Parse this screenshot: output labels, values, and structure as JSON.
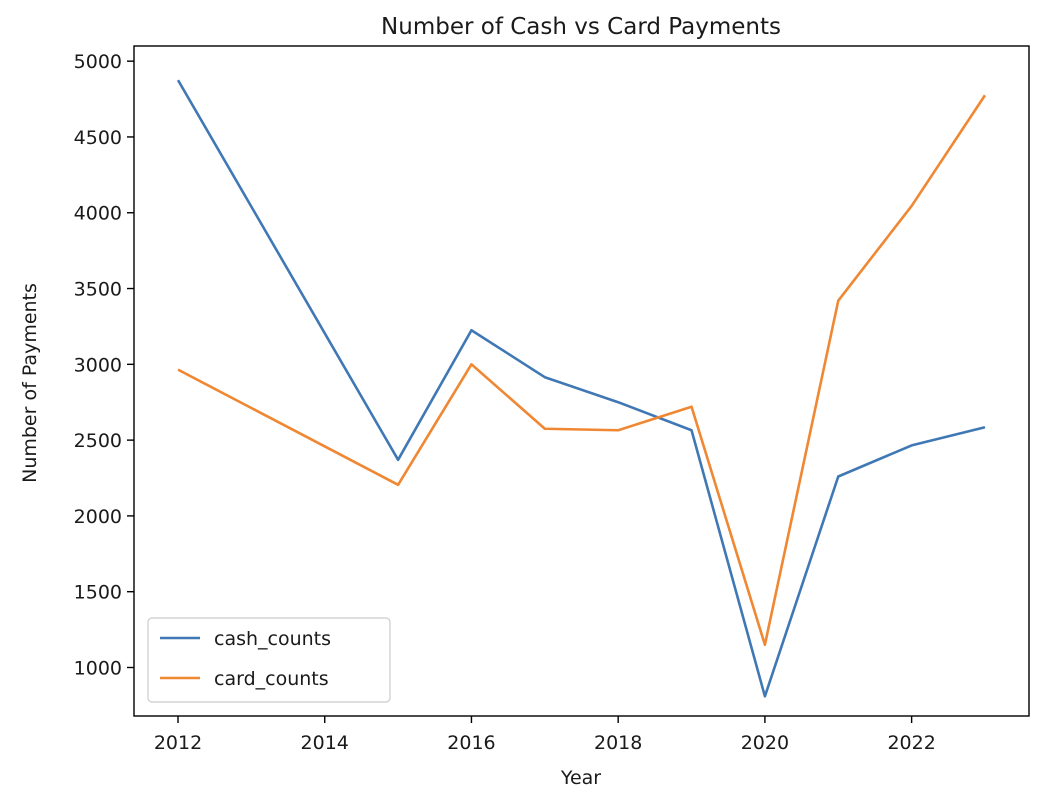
{
  "chart_data": {
    "type": "line",
    "title": "Number of Cash vs Card Payments",
    "xlabel": "Year",
    "ylabel": "Number of Payments",
    "x": [
      2012,
      2015,
      2016,
      2017,
      2018,
      2019,
      2020,
      2021,
      2022,
      2023
    ],
    "series": [
      {
        "name": "cash_counts",
        "color": "#3f78b4",
        "values": [
          4875,
          2370,
          3225,
          2915,
          2750,
          2565,
          810,
          2260,
          2465,
          2585
        ]
      },
      {
        "name": "card_counts",
        "color": "#ef8733",
        "values": [
          2965,
          2205,
          3000,
          2575,
          2565,
          2720,
          1150,
          3420,
          4045,
          4775
        ]
      }
    ],
    "xlim": [
      2011.4,
      2023.6
    ],
    "ylim": [
      680,
      5100
    ],
    "xticks": [
      2012,
      2014,
      2016,
      2018,
      2020,
      2022
    ],
    "yticks": [
      1000,
      1500,
      2000,
      2500,
      3000,
      3500,
      4000,
      4500,
      5000
    ],
    "grid": false,
    "legend_position": "lower-left"
  }
}
